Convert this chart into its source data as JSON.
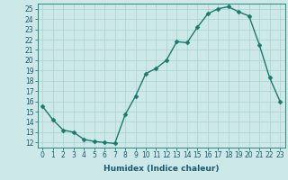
{
  "x": [
    0,
    1,
    2,
    3,
    4,
    5,
    6,
    7,
    8,
    9,
    10,
    11,
    12,
    13,
    14,
    15,
    16,
    17,
    18,
    19,
    20,
    21,
    22,
    23
  ],
  "y": [
    15.5,
    14.2,
    13.2,
    13.0,
    12.3,
    12.1,
    12.0,
    11.9,
    14.7,
    16.5,
    18.7,
    19.2,
    20.0,
    21.8,
    21.7,
    23.2,
    24.5,
    25.0,
    25.2,
    24.7,
    24.3,
    21.5,
    18.3,
    16.0
  ],
  "line_color": "#1a7a6a",
  "marker_color": "#1a7a6a",
  "bg_color": "#cce8e8",
  "grid_color": "#aad0d0",
  "xlabel": "Humidex (Indice chaleur)",
  "xlim": [
    -0.5,
    23.5
  ],
  "ylim": [
    11.5,
    25.5
  ],
  "yticks": [
    12,
    13,
    14,
    15,
    16,
    17,
    18,
    19,
    20,
    21,
    22,
    23,
    24,
    25
  ],
  "xticks": [
    0,
    1,
    2,
    3,
    4,
    5,
    6,
    7,
    8,
    9,
    10,
    11,
    12,
    13,
    14,
    15,
    16,
    17,
    18,
    19,
    20,
    21,
    22,
    23
  ],
  "xlabel_fontsize": 6.5,
  "tick_fontsize": 5.5,
  "line_width": 1.0,
  "marker_size": 2.5
}
